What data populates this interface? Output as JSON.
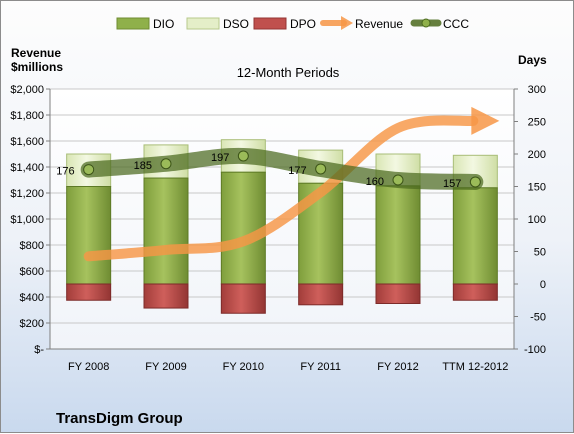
{
  "chart_data": {
    "type": "bar",
    "title": "12-Month Periods",
    "categories": [
      "FY 2008",
      "FY 2009",
      "FY 2010",
      "FY 2011",
      "FY 2012",
      "TTM 12-2012"
    ],
    "left_axis": {
      "label_line1": "Revenue",
      "label_line2": "$millions",
      "ylim": [
        0,
        2000
      ],
      "ticks": [
        0,
        200,
        400,
        600,
        800,
        1000,
        1200,
        1400,
        1600,
        1800,
        2000
      ],
      "tick_labels": [
        "$-",
        "$200",
        "$400",
        "$600",
        "$800",
        "$1,000",
        "$1,200",
        "$1,400",
        "$1,600",
        "$1,800",
        "$2,000"
      ]
    },
    "right_axis": {
      "label": "Days",
      "ylim": [
        -100,
        300
      ],
      "ticks": [
        -100,
        -50,
        0,
        50,
        100,
        150,
        200,
        250,
        300
      ],
      "tick_labels": [
        "-100",
        "-50",
        "0",
        "50",
        "100",
        "150",
        "200",
        "250",
        "300"
      ]
    },
    "grid": true,
    "legend_position": "top",
    "series": [
      {
        "name": "DIO",
        "axis": "days",
        "color": "#8fb04a",
        "values": [
          150,
          163,
          172,
          155,
          151,
          148
        ]
      },
      {
        "name": "DSO",
        "axis": "days",
        "color": "#e4eec8",
        "values": [
          50,
          51,
          50,
          51,
          49,
          50
        ]
      },
      {
        "name": "DPO",
        "axis": "days",
        "color": "#c0504d",
        "values": [
          -25,
          -37,
          -45,
          -32,
          -30,
          -25
        ]
      },
      {
        "name": "Revenue",
        "axis": "revenue",
        "color": "#f79646",
        "values": [
          713,
          762,
          828,
          1206,
          1700,
          1755
        ]
      },
      {
        "name": "CCC",
        "axis": "days",
        "color": "#5e7a2a",
        "values": [
          176,
          185,
          197,
          177,
          160,
          157
        ],
        "labels": [
          "176",
          "185",
          "197",
          "177",
          "160",
          "157"
        ]
      }
    ]
  },
  "footer": {
    "company": "TransDigm Group"
  }
}
